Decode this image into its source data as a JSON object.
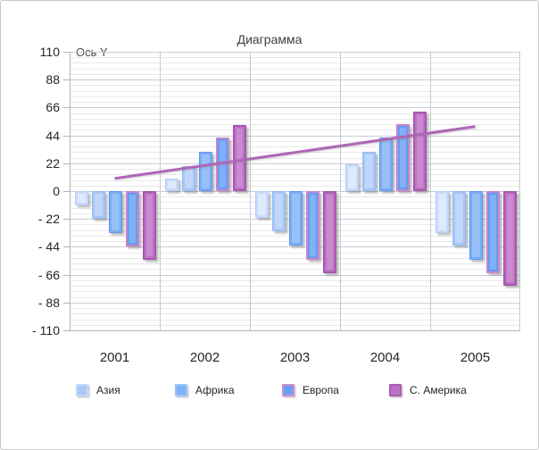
{
  "colors": {
    "background": "#FFFFFF",
    "frame_border": "#C9C9C9",
    "text": "#262626",
    "title_text": "#3F3F3F"
  },
  "chart_data": {
    "type": "bar",
    "title": "Диаграмма",
    "y_axis_title": "Ось Y",
    "categories": [
      "2001",
      "2002",
      "2003",
      "2004",
      "2005"
    ],
    "y_max": 110,
    "y_min": -110,
    "y_major_step": 22,
    "y_minor_step": 4.4,
    "y_tick_labels": [
      "110",
      "88",
      "66",
      "44",
      "22",
      "0",
      "- 22",
      "- 44",
      "- 66",
      "- 88",
      "- 110"
    ],
    "grid": {
      "major_color": "#C8CDD8",
      "minor_color": "#E9E9EB",
      "vertical_color": "#C9C9C9",
      "axis_color": "#B5B5B5"
    },
    "series": [
      {
        "id": "series-a",
        "name": "",
        "in_legend": false,
        "fill": "#C9DBFA",
        "border": "#B7CEF8",
        "inner": "#DEEAFD",
        "border_width": 1,
        "values": [
          -11,
          10,
          -21,
          21,
          -33
        ]
      },
      {
        "id": "asia",
        "name": "Азия",
        "in_legend": true,
        "fill": "#A5C6F8",
        "border": "#97BCF7",
        "inner": "#C0D6FA",
        "border_width": 1,
        "values": [
          -22,
          20,
          -32,
          31,
          -43
        ]
      },
      {
        "id": "africa",
        "name": "Африка",
        "in_legend": true,
        "fill": "#79ACF6",
        "border": "#5E98F2",
        "inner": "#98C0F8",
        "border_width": 1,
        "values": [
          -33,
          31,
          -43,
          42,
          -54
        ]
      },
      {
        "id": "europe",
        "name": "Европа",
        "in_legend": true,
        "fill": "#639DF4",
        "border": "#CB83CA",
        "inner": "#81B0F6",
        "border_width": 2,
        "values": [
          -44,
          42,
          -54,
          53,
          -65
        ]
      },
      {
        "id": "n-america",
        "name": "С. Америка",
        "in_legend": true,
        "fill": "#BC73C4",
        "border": "#A757B0",
        "inner": "#CA89D0",
        "border_width": 2,
        "values": [
          -54,
          52,
          -65,
          63,
          -75
        ]
      }
    ],
    "legend": [
      {
        "id": "asia",
        "label": "Азия",
        "fill": "#A8C8F7",
        "border": "#C6D9FB"
      },
      {
        "id": "africa",
        "label": "Африка",
        "fill": "#7EB1F6",
        "border": "#A0C4F8"
      },
      {
        "id": "europe",
        "label": "Европа",
        "fill": "#699FF4",
        "border": "#D28ECD"
      },
      {
        "id": "n-america",
        "label": "С. Америка",
        "fill": "#BA74C5",
        "border": "#AB5BB4"
      }
    ],
    "trendline": {
      "color": "#AD66B6",
      "width": 3,
      "start_category": "2001",
      "start_value": 10,
      "end_category": "2005",
      "end_value": 51
    },
    "legend_position": "bottom",
    "grid_on": true
  }
}
